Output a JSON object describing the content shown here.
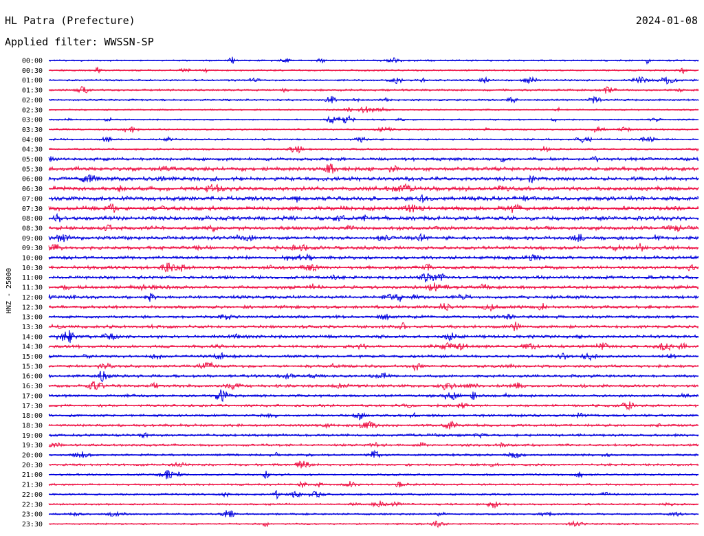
{
  "header": {
    "station": "HL Patra (Prefecture)",
    "date": "2024-01-08",
    "filter": "Applied filter: WWSSN-SP"
  },
  "chart_data": {
    "type": "line",
    "ylabel": "HNZ - 25000",
    "title": "",
    "xlabel": "",
    "row_colors": [
      "#0000dd",
      "#ee1144"
    ],
    "grid": false,
    "rows": [
      {
        "time": "00:00",
        "level": 0.3
      },
      {
        "time": "00:30",
        "level": 0.3
      },
      {
        "time": "01:00",
        "level": 0.35
      },
      {
        "time": "01:30",
        "level": 0.4
      },
      {
        "time": "02:00",
        "level": 0.35
      },
      {
        "time": "02:30",
        "level": 0.25
      },
      {
        "time": "03:00",
        "level": 0.25
      },
      {
        "time": "03:30",
        "level": 0.3
      },
      {
        "time": "04:00",
        "level": 0.35
      },
      {
        "time": "04:30",
        "level": 0.35
      },
      {
        "time": "05:00",
        "level": 0.7
      },
      {
        "time": "05:30",
        "level": 0.9
      },
      {
        "time": "06:00",
        "level": 0.9
      },
      {
        "time": "06:30",
        "level": 1.0
      },
      {
        "time": "07:00",
        "level": 1.0
      },
      {
        "time": "07:30",
        "level": 1.0
      },
      {
        "time": "08:00",
        "level": 0.95
      },
      {
        "time": "08:30",
        "level": 0.85
      },
      {
        "time": "09:00",
        "level": 0.8
      },
      {
        "time": "09:30",
        "level": 0.8
      },
      {
        "time": "10:00",
        "level": 0.75
      },
      {
        "time": "10:30",
        "level": 0.75
      },
      {
        "time": "11:00",
        "level": 0.75
      },
      {
        "time": "11:30",
        "level": 0.75
      },
      {
        "time": "12:00",
        "level": 0.7
      },
      {
        "time": "12:30",
        "level": 0.7
      },
      {
        "time": "13:00",
        "level": 0.65
      },
      {
        "time": "13:30",
        "level": 0.65
      },
      {
        "time": "14:00",
        "level": 0.7
      },
      {
        "time": "14:30",
        "level": 0.65
      },
      {
        "time": "15:00",
        "level": 0.6
      },
      {
        "time": "15:30",
        "level": 0.6
      },
      {
        "time": "16:00",
        "level": 0.6
      },
      {
        "time": "16:30",
        "level": 0.6
      },
      {
        "time": "17:00",
        "level": 0.55
      },
      {
        "time": "17:30",
        "level": 0.55
      },
      {
        "time": "18:00",
        "level": 0.55
      },
      {
        "time": "18:30",
        "level": 0.55
      },
      {
        "time": "19:00",
        "level": 0.55
      },
      {
        "time": "19:30",
        "level": 0.5
      },
      {
        "time": "20:00",
        "level": 0.45
      },
      {
        "time": "20:30",
        "level": 0.45
      },
      {
        "time": "21:00",
        "level": 0.4
      },
      {
        "time": "21:30",
        "level": 0.4
      },
      {
        "time": "22:00",
        "level": 0.4
      },
      {
        "time": "22:30",
        "level": 0.35
      },
      {
        "time": "23:00",
        "level": 0.35
      },
      {
        "time": "23:30",
        "level": 0.3
      }
    ]
  }
}
